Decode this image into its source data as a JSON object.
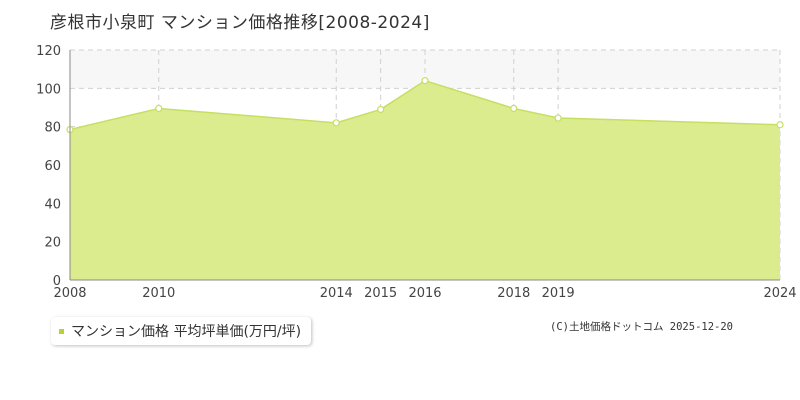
{
  "title": "彦根市小泉町 マンション価格推移[2008-2024]",
  "legend_label": "マンション価格 平均坪単価(万円/坪)",
  "credit": "(C)土地価格ドットコム 2025-12-20",
  "colors": {
    "area_fill": "#dbec8f",
    "area_line": "#c5df62",
    "marker": "#ffffff",
    "grid": "#d0d0d0",
    "axis": "#888888",
    "upper_band": "#f7f7f7",
    "legend_swatch": "#b5d335"
  },
  "chart_data": {
    "type": "area",
    "title": "彦根市小泉町 マンション価格推移[2008-2024]",
    "x": [
      "2008",
      "2010",
      "2014",
      "2015",
      "2016",
      "2018",
      "2019",
      "2024"
    ],
    "series": [
      {
        "name": "マンション価格 平均坪単価(万円/坪)",
        "values": [
          78.5,
          89.5,
          82.0,
          89.0,
          104.0,
          89.5,
          84.5,
          81.0
        ]
      }
    ],
    "yticks": [
      0,
      20,
      40,
      60,
      80,
      100,
      120
    ],
    "ylim": [
      0,
      120
    ],
    "grid": true,
    "legend": "bottom-left"
  }
}
